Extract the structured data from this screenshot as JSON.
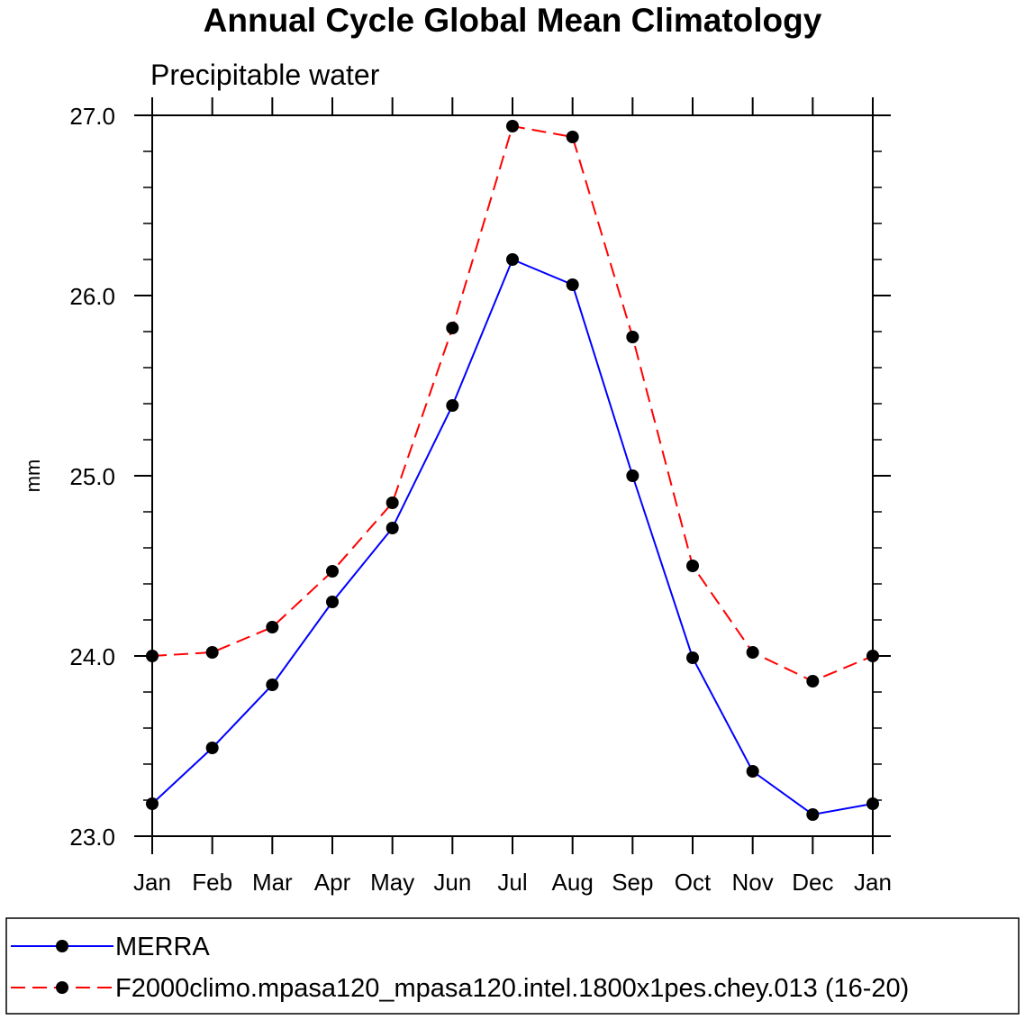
{
  "chart_data": {
    "type": "line",
    "title": "Annual Cycle Global Mean Climatology",
    "subtitle": "Precipitable water",
    "xlabel": "",
    "ylabel": "mm",
    "ylim": [
      23.0,
      27.0
    ],
    "yticks": [
      "23.0",
      "24.0",
      "25.0",
      "26.0",
      "27.0"
    ],
    "categories": [
      "Jan",
      "Feb",
      "Mar",
      "Apr",
      "May",
      "Jun",
      "Jul",
      "Aug",
      "Sep",
      "Oct",
      "Nov",
      "Dec",
      "Jan"
    ],
    "series": [
      {
        "name": "MERRA",
        "color": "#0000ff",
        "line_style": "solid",
        "values": [
          23.18,
          23.49,
          23.84,
          24.3,
          24.71,
          25.39,
          26.2,
          26.06,
          25.0,
          23.99,
          23.36,
          23.12,
          23.18
        ]
      },
      {
        "name": "F2000climo.mpasa120_mpasa120.intel.1800x1pes.chey.013 (16-20)",
        "color": "#ff0000",
        "line_style": "dashed",
        "values": [
          24.0,
          24.02,
          24.16,
          24.47,
          24.85,
          25.82,
          26.94,
          26.88,
          25.77,
          24.5,
          24.02,
          23.86,
          24.0
        ]
      }
    ],
    "marker": "filled-circle",
    "marker_color": "#000000",
    "grid": false,
    "legend_position": "bottom"
  }
}
